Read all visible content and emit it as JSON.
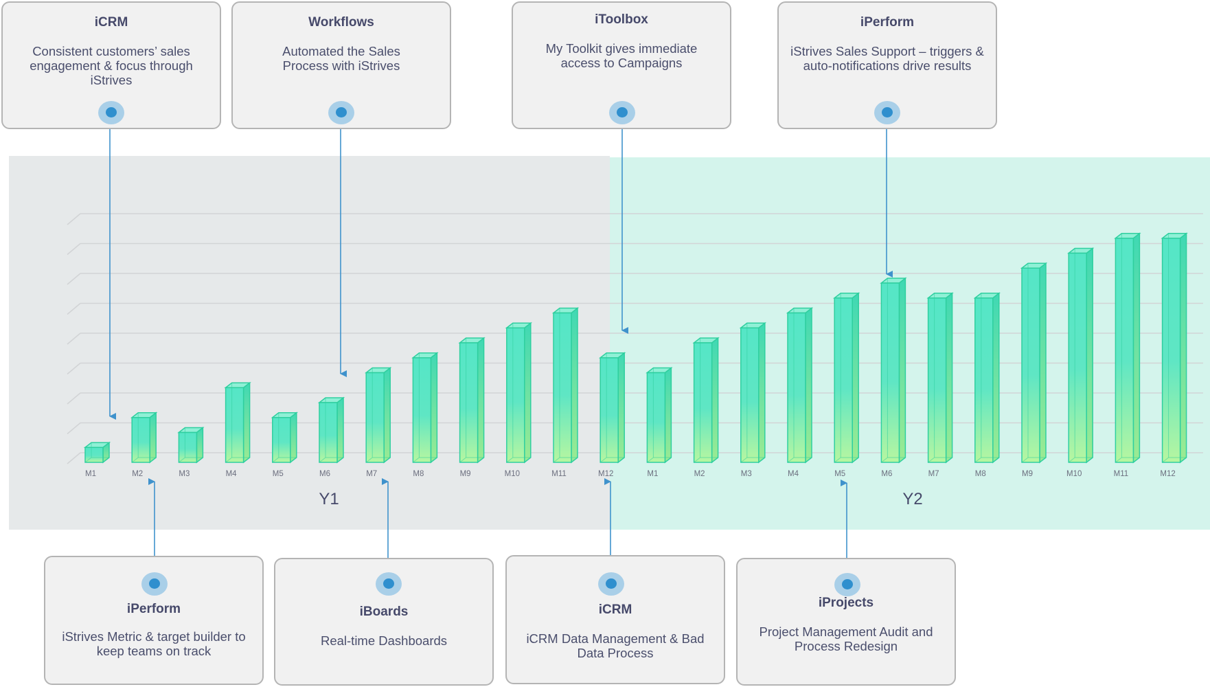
{
  "chart_data": {
    "type": "bar",
    "groups": [
      {
        "label": "Y1",
        "categories": [
          "M1",
          "M2",
          "M3",
          "M4",
          "M5",
          "M6",
          "M7",
          "M8",
          "M9",
          "M10",
          "M11",
          "M12"
        ]
      },
      {
        "label": "Y2",
        "categories": [
          "M1",
          "M2",
          "M3",
          "M4",
          "M5",
          "M6",
          "M7",
          "M8",
          "M9",
          "M10",
          "M11",
          "M12"
        ]
      }
    ],
    "series": [
      {
        "values": [
          0.5,
          1.5,
          1,
          2.5,
          1.5,
          2,
          3,
          3.5,
          4,
          4.5,
          5,
          3.5,
          3,
          4,
          4.5,
          5,
          5.5,
          6,
          5.5,
          5.5,
          6.5,
          7,
          7.5,
          7.5
        ]
      }
    ],
    "ylim": [
      0,
      8
    ],
    "grid": true,
    "colors": {
      "y1_background": "#e6e9ea",
      "y2_background": "#d4f4ec",
      "bar_top": "#55e6c6",
      "bar_bottom": "#b7f6a0",
      "bar_edge": "#2fcf9f",
      "arrow": "#3f92cc"
    }
  },
  "callouts_top": [
    {
      "title": "iCRM",
      "description": "Consistent customers’ sales engagement & focus through iStrives",
      "target": "Y1 M1"
    },
    {
      "title": "Workflows",
      "description": "Automated the Sales Process with iStrives",
      "target": "Y1 M6"
    },
    {
      "title": "iToolbox",
      "description": "My Toolkit gives immediate access to Campaigns",
      "target": "Y1 M12"
    },
    {
      "title": "iPerform",
      "description": "iStrives Sales Support – triggers & auto-notifications drive results",
      "target": "Y2 M6"
    }
  ],
  "callouts_bottom": [
    {
      "title": "iPerform",
      "description": "iStrives Metric & target builder to keep teams on track",
      "target": "Y1 M2"
    },
    {
      "title": "iBoards",
      "description": "Real-time Dashboards",
      "target": "Y1 M7"
    },
    {
      "title": "iCRM",
      "description": "iCRM Data Management & Bad Data Process",
      "target": "Y1 M12"
    },
    {
      "title": "iProjects",
      "description": "Project Management Audit and Process Redesign",
      "target": "Y2 M5"
    }
  ]
}
